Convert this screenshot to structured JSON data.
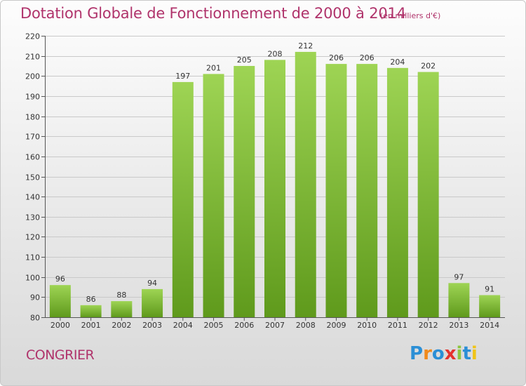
{
  "title": "Dotation Globale de Fonctionnement de 2000 à 2014",
  "unit_label": "(en milliers d'€)",
  "commune": "CONGRIER",
  "logo": {
    "text": "Proxiti",
    "letters": [
      {
        "ch": "P",
        "color": "#2b8fd6"
      },
      {
        "ch": "r",
        "color": "#f08a1c"
      },
      {
        "ch": "o",
        "color": "#2b8fd6"
      },
      {
        "ch": "x",
        "color": "#e5322d"
      },
      {
        "ch": "i",
        "color": "#8dc63f"
      },
      {
        "ch": "t",
        "color": "#2b8fd6"
      },
      {
        "ch": "i",
        "color": "#f0c419"
      }
    ]
  },
  "colors": {
    "bar_top": "#9ed454",
    "bar_bottom": "#5f9a1c",
    "title": "#b0336b",
    "grid": "#c9c9c9"
  },
  "chart_data": {
    "type": "bar",
    "title": "Dotation Globale de Fonctionnement de 2000 à 2014",
    "categories": [
      "2000",
      "2001",
      "2002",
      "2003",
      "2004",
      "2005",
      "2006",
      "2007",
      "2008",
      "2009",
      "2010",
      "2011",
      "2012",
      "2013",
      "2014"
    ],
    "values": [
      96,
      86,
      88,
      94,
      197,
      201,
      205,
      208,
      212,
      206,
      206,
      204,
      202,
      97,
      91
    ],
    "ylim": [
      80,
      220
    ],
    "yticks": [
      80,
      90,
      100,
      110,
      120,
      130,
      140,
      150,
      160,
      170,
      180,
      190,
      200,
      210,
      220
    ],
    "grid": true,
    "data_labels": true
  }
}
